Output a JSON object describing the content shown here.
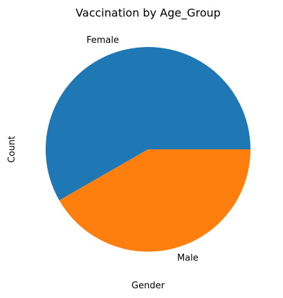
{
  "chart_data": {
    "type": "pie",
    "title": "Vaccination by Age_Group",
    "xlabel": "Gender",
    "ylabel": "Count",
    "slices": [
      {
        "label": "Female",
        "value": 58.3,
        "color": "#1f77b4"
      },
      {
        "label": "Male",
        "value": 41.7,
        "color": "#ff7f0e"
      }
    ],
    "start_angle_deg": 0,
    "direction": "counterclockwise",
    "legend": "none",
    "grid": false
  }
}
